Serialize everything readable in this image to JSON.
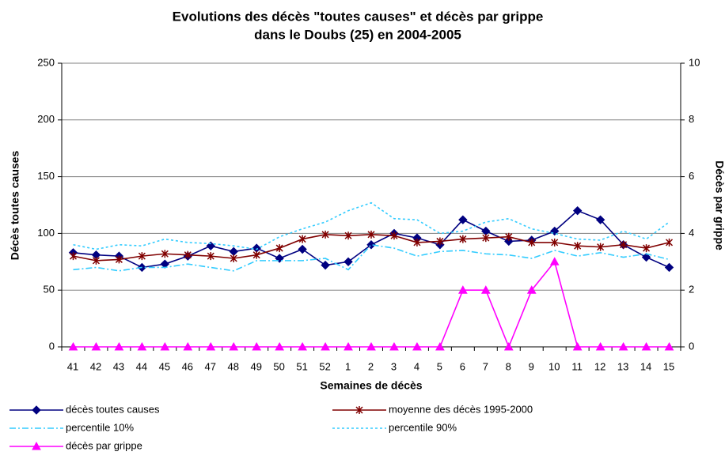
{
  "chart_data": {
    "type": "line",
    "title": [
      "Evolutions des décès \"toutes causes\" et décès par grippe",
      "dans le Doubs (25) en 2004-2005"
    ],
    "x_label": "Semaines de décès",
    "y_label": "Décès toutes causes",
    "y2_label": "Décès par grippe",
    "categories": [
      "41",
      "42",
      "43",
      "44",
      "45",
      "46",
      "47",
      "48",
      "49",
      "50",
      "51",
      "52",
      "1",
      "2",
      "3",
      "4",
      "5",
      "6",
      "7",
      "8",
      "9",
      "10",
      "11",
      "12",
      "13",
      "14",
      "15"
    ],
    "ylim": [
      0,
      250
    ],
    "yticks": [
      0,
      50,
      100,
      150,
      200,
      250
    ],
    "y2lim": [
      0,
      10
    ],
    "y2ticks": [
      0,
      2,
      4,
      6,
      8,
      10
    ],
    "grid": true,
    "legend": "bottom",
    "series": [
      {
        "name": "décès toutes causes",
        "color": "#000080",
        "marker": "diamond",
        "dash": "solid",
        "values": [
          83,
          81,
          80,
          70,
          73,
          80,
          89,
          84,
          87,
          78,
          86,
          72,
          75,
          90,
          100,
          96,
          90,
          112,
          102,
          93,
          94,
          102,
          120,
          112,
          90,
          79,
          70
        ]
      },
      {
        "name": "moyenne des décès 1995-2000",
        "color": "#800000",
        "marker": "star",
        "dash": "solid",
        "values": [
          80,
          76,
          77,
          80,
          82,
          81,
          80,
          78,
          81,
          87,
          95,
          99,
          98,
          99,
          98,
          92,
          93,
          95,
          96,
          97,
          92,
          92,
          89,
          88,
          90,
          87,
          92
        ]
      },
      {
        "name": "percentile 10%",
        "color": "#33ccff",
        "marker": "none",
        "dash": "dashdot",
        "values": [
          68,
          70,
          67,
          70,
          70,
          73,
          70,
          67,
          76,
          76,
          76,
          78,
          68,
          90,
          87,
          80,
          84,
          85,
          82,
          81,
          78,
          85,
          80,
          83,
          79,
          82,
          77
        ]
      },
      {
        "name": "percentile 90%",
        "color": "#33ccff",
        "marker": "none",
        "dash": "dot",
        "values": [
          90,
          86,
          90,
          89,
          95,
          92,
          91,
          89,
          86,
          97,
          104,
          110,
          120,
          127,
          113,
          112,
          100,
          102,
          110,
          113,
          104,
          100,
          95,
          94,
          102,
          95,
          110
        ]
      },
      {
        "name": "décès par grippe",
        "color": "#ff00ff",
        "marker": "triangle",
        "dash": "solid",
        "axis": "y2",
        "values": [
          0,
          0,
          0,
          0,
          0,
          0,
          0,
          0,
          0,
          0,
          0,
          0,
          0,
          0,
          0,
          0,
          0,
          2,
          2,
          0,
          2,
          3,
          0,
          0,
          0,
          0,
          0
        ]
      }
    ]
  }
}
